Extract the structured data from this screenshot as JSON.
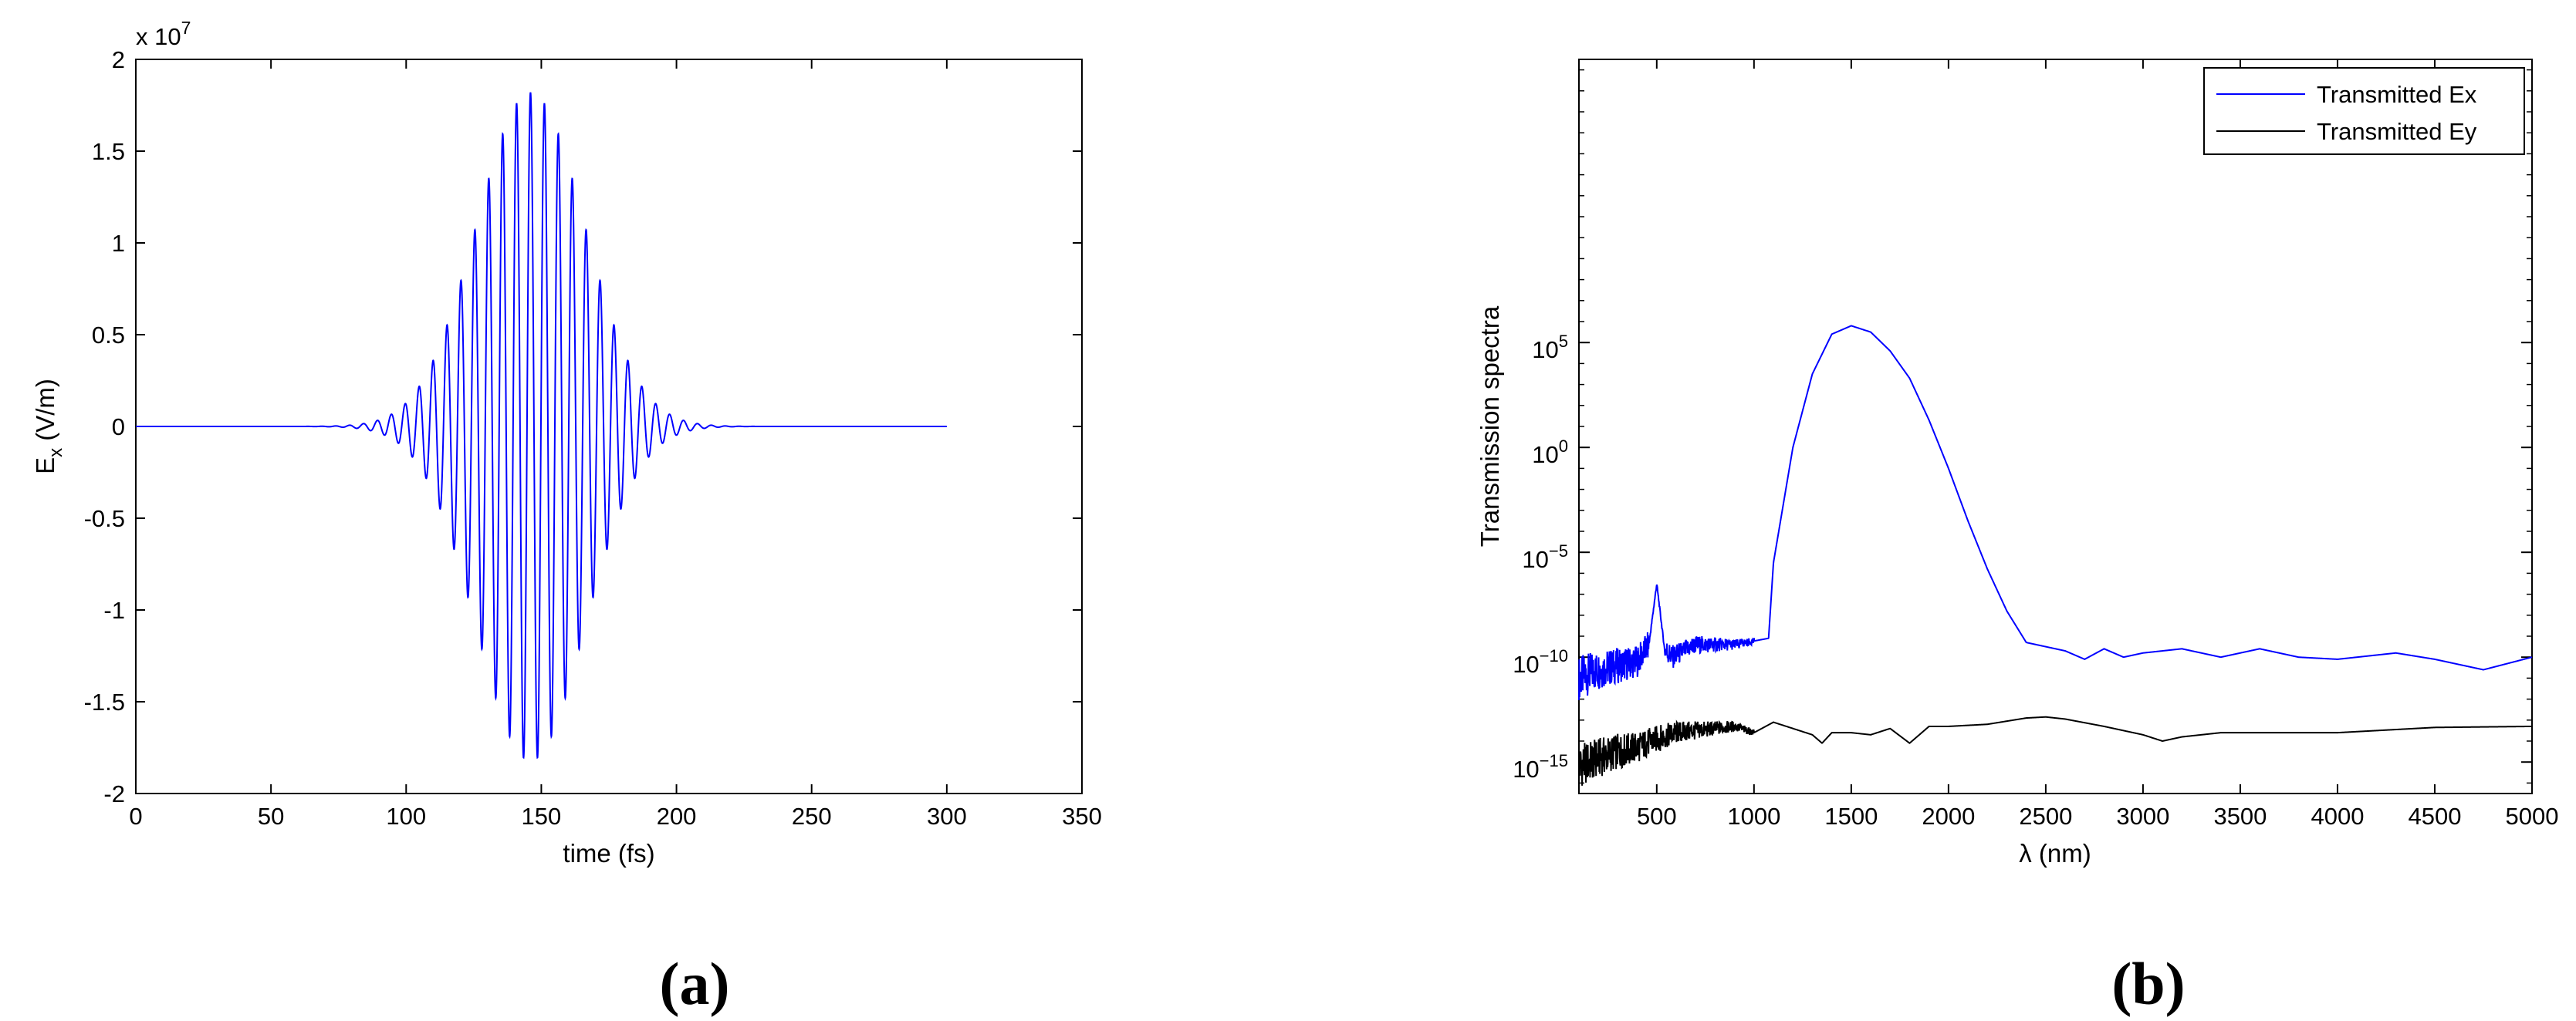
{
  "panel_labels": [
    "(a)",
    "(b)"
  ],
  "chart_data": [
    {
      "type": "line",
      "xlabel": "time (fs)",
      "ylabel_main": "E",
      "ylabel_sub": "x",
      "ylabel_rest": " (V/m)",
      "exponent_base": "x 10",
      "exponent_power": "7",
      "xlim": [
        0,
        350
      ],
      "ylim": [
        -2,
        2
      ],
      "xticks": [
        0,
        50,
        100,
        150,
        200,
        250,
        300,
        350
      ],
      "yticks": [
        -2,
        -1.5,
        -1,
        -0.5,
        0,
        0.5,
        1,
        1.5,
        2
      ],
      "xtick_labels": [
        "0",
        "50",
        "100",
        "150",
        "200",
        "250",
        "300",
        "350"
      ],
      "ytick_labels": [
        "-2",
        "-1.5",
        "-1",
        "-0.5",
        "0",
        "0.5",
        "1",
        "1.5",
        "2"
      ],
      "series": [
        {
          "color": "#0000ff",
          "shape": "gaussian-modulated sinusoid",
          "t_start": 0,
          "t_end": 300,
          "center_time": 146,
          "peak_amplitude": 1.82,
          "min_value": -1.84,
          "carrier_period": 5.15,
          "envelope_sigma": 20
        }
      ]
    },
    {
      "type": "line",
      "xlabel": "λ (nm)",
      "ylabel": "Transmission spectra",
      "yscale": "log",
      "xlim": [
        100,
        5000
      ],
      "ylim_log10": [
        -16.5,
        18.5
      ],
      "xticks": [
        500,
        1000,
        1500,
        2000,
        2500,
        3000,
        3500,
        4000,
        4500,
        5000
      ],
      "xtick_labels": [
        "500",
        "1000",
        "1500",
        "2000",
        "2500",
        "3000",
        "3500",
        "4000",
        "4500",
        "5000"
      ],
      "ytick_exponents": [
        -15,
        -10,
        -5,
        0,
        5
      ],
      "ytick_base": "10",
      "ytick_powers": [
        "−15",
        "−10",
        "−5",
        "0",
        "5"
      ],
      "legend_position": "top-right",
      "series": [
        {
          "name": "Transmitted Ex",
          "color": "#0000ff",
          "x": [
            100,
            200,
            300,
            400,
            460,
            500,
            540,
            580,
            700,
            900,
            1075,
            1100,
            1200,
            1300,
            1400,
            1500,
            1600,
            1700,
            1800,
            1900,
            2000,
            2100,
            2200,
            2300,
            2400,
            2500,
            2600,
            2700,
            2800,
            2900,
            3000,
            3200,
            3400,
            3600,
            3800,
            4000,
            4300,
            4500,
            4750,
            5000
          ],
          "log10_y": [
            -11.0,
            -10.6,
            -10.4,
            -10.2,
            -9.4,
            -6.5,
            -9.6,
            -10.0,
            -9.4,
            -9.4,
            -9.1,
            -5.5,
            0.0,
            3.5,
            5.4,
            5.8,
            5.5,
            4.6,
            3.3,
            1.3,
            -1.0,
            -3.5,
            -5.8,
            -7.8,
            -9.3,
            -9.5,
            -9.7,
            -10.1,
            -9.6,
            -10.0,
            -9.8,
            -9.6,
            -10.0,
            -9.6,
            -10.0,
            -10.1,
            -9.8,
            -10.1,
            -10.6,
            -10.0
          ]
        },
        {
          "name": "Transmitted Ey",
          "color": "#000000",
          "x": [
            100,
            200,
            300,
            400,
            500,
            600,
            700,
            800,
            900,
            1000,
            1100,
            1200,
            1300,
            1350,
            1400,
            1500,
            1600,
            1700,
            1800,
            1900,
            2000,
            2200,
            2400,
            2500,
            2600,
            2800,
            3000,
            3100,
            3200,
            3400,
            3600,
            3800,
            4000,
            4200,
            4500,
            5000
          ],
          "log10_y": [
            -15.2,
            -14.8,
            -14.5,
            -14.3,
            -13.9,
            -13.6,
            -13.5,
            -13.4,
            -13.3,
            -13.6,
            -13.1,
            -13.4,
            -13.7,
            -14.1,
            -13.6,
            -13.6,
            -13.7,
            -13.4,
            -14.1,
            -13.3,
            -13.3,
            -13.2,
            -12.9,
            -12.85,
            -12.95,
            -13.3,
            -13.7,
            -14.0,
            -13.8,
            -13.6,
            -13.6,
            -13.6,
            -13.6,
            -13.5,
            -13.35,
            -13.3
          ]
        }
      ]
    }
  ]
}
